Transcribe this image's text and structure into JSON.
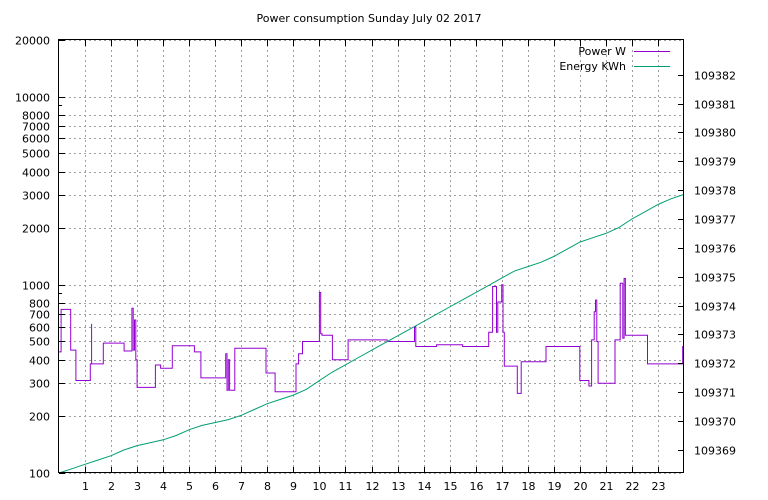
{
  "chart_data": {
    "type": "line",
    "title": "Power consumption Sunday July 02 2017",
    "x_ticks": [
      1,
      2,
      3,
      4,
      5,
      6,
      7,
      8,
      9,
      10,
      11,
      12,
      13,
      14,
      15,
      16,
      17,
      18,
      19,
      20,
      21,
      22,
      23
    ],
    "xlim": [
      0,
      24
    ],
    "y_scale": "log",
    "ylim": [
      100,
      20000
    ],
    "y_ticks": [
      100,
      200,
      300,
      400,
      500,
      600,
      700,
      800,
      1000,
      2000,
      3000,
      4000,
      5000,
      6000,
      7000,
      8000,
      10000,
      20000
    ],
    "y2lim": [
      109368.2,
      109383.2
    ],
    "y2_ticks": [
      109369,
      109370,
      109371,
      109372,
      109373,
      109374,
      109375,
      109376,
      109377,
      109378,
      109379,
      109380,
      109381,
      109382
    ],
    "grid": true,
    "legend_position": "top-right",
    "series": [
      {
        "name": "Power W",
        "axis": "y",
        "color": "#9400d3",
        "x": [
          0,
          0.08,
          0.08,
          0.45,
          0.45,
          0.65,
          0.65,
          1.2,
          1.2,
          1.25,
          1.25,
          1.25,
          1.25,
          1.7,
          1.7,
          2.5,
          2.5,
          2.8,
          2.8,
          2.85,
          2.85,
          2.9,
          2.9,
          2.95,
          2.95,
          3.0,
          3.0,
          3.7,
          3.7,
          3.9,
          3.9,
          4.35,
          4.35,
          5.2,
          5.2,
          5.45,
          5.45,
          6.4,
          6.4,
          6.45,
          6.45,
          6.5,
          6.5,
          6.55,
          6.55,
          6.75,
          6.75,
          7.95,
          7.95,
          8.3,
          8.3,
          9.1,
          9.1,
          9.2,
          9.2,
          9.35,
          9.35,
          10.0,
          10.0,
          10.05,
          10.05,
          10.1,
          10.1,
          10.5,
          10.5,
          11.1,
          11.1,
          11.7,
          11.7,
          12.6,
          12.6,
          13.65,
          13.65,
          13.7,
          13.7,
          14.5,
          14.5,
          15.5,
          15.5,
          16.5,
          16.5,
          16.65,
          16.65,
          16.8,
          16.8,
          16.85,
          16.85,
          17.0,
          17.0,
          17.05,
          17.05,
          17.1,
          17.1,
          17.6,
          17.6,
          17.75,
          17.75,
          18.6,
          18.6,
          18.7,
          18.7,
          19.0,
          19.0,
          20.0,
          20.0,
          20.35,
          20.35,
          20.45,
          20.45,
          20.55,
          20.55,
          20.6,
          20.6,
          20.65,
          20.65,
          20.7,
          20.7,
          21.35,
          21.35,
          21.55,
          21.55,
          21.65,
          21.65,
          21.7,
          21.7,
          21.75,
          21.75,
          21.8,
          21.8,
          22.6,
          22.6,
          22.8,
          22.8,
          23.95,
          23.95,
          24.0
        ],
        "y": [
          440,
          440,
          740,
          740,
          450,
          450,
          310,
          310,
          380,
          380,
          620,
          620,
          380,
          380,
          490,
          490,
          445,
          445,
          750,
          750,
          450,
          450,
          650,
          650,
          400,
          400,
          285,
          285,
          375,
          375,
          360,
          360,
          475,
          475,
          440,
          440,
          320,
          320,
          430,
          430,
          275,
          275,
          400,
          400,
          275,
          275,
          460,
          460,
          340,
          340,
          270,
          270,
          380,
          380,
          430,
          430,
          500,
          500,
          910,
          910,
          550,
          550,
          540,
          540,
          400,
          400,
          510,
          510,
          510,
          510,
          500,
          500,
          600,
          600,
          470,
          470,
          480,
          480,
          470,
          470,
          560,
          560,
          980,
          980,
          560,
          560,
          810,
          810,
          1000,
          1000,
          560,
          560,
          370,
          370,
          265,
          265,
          390,
          390,
          390,
          390,
          470,
          470,
          470,
          470,
          310,
          310,
          290,
          290,
          510,
          510,
          720,
          720,
          830,
          830,
          500,
          500,
          300,
          300,
          510,
          510,
          1020,
          1020,
          520,
          520,
          1080,
          1080,
          540,
          540,
          540,
          540,
          380,
          380,
          380,
          380,
          470,
          470
        ]
      },
      {
        "name": "Energy KWh",
        "axis": "y2",
        "color": "#009e73",
        "x": [
          0,
          0.5,
          1,
          1.5,
          2,
          2.5,
          3,
          3.5,
          4,
          4.5,
          5,
          5.5,
          6,
          6.5,
          7,
          7.5,
          8,
          8.5,
          9,
          9.5,
          10,
          10.5,
          11,
          11.5,
          12,
          12.5,
          13,
          13.5,
          14,
          14.5,
          15,
          15.5,
          16,
          16.5,
          17,
          17.5,
          18,
          18.5,
          19,
          19.5,
          20,
          20.5,
          21,
          21.5,
          22,
          22.5,
          23,
          23.5,
          24
        ],
        "y": [
          109368.2,
          109368.35,
          109368.5,
          109368.65,
          109368.8,
          109369.0,
          109369.15,
          109369.25,
          109369.35,
          109369.5,
          109369.7,
          109369.85,
          109369.95,
          109370.05,
          109370.2,
          109370.4,
          109370.6,
          109370.75,
          109370.9,
          109371.1,
          109371.4,
          109371.7,
          109371.95,
          109372.2,
          109372.45,
          109372.7,
          109372.95,
          109373.2,
          109373.45,
          109373.7,
          109373.95,
          109374.2,
          109374.45,
          109374.7,
          109374.95,
          109375.2,
          109375.35,
          109375.5,
          109375.7,
          109375.95,
          109376.2,
          109376.35,
          109376.5,
          109376.7,
          109377.0,
          109377.25,
          109377.5,
          109377.7,
          109377.85
        ]
      }
    ]
  }
}
